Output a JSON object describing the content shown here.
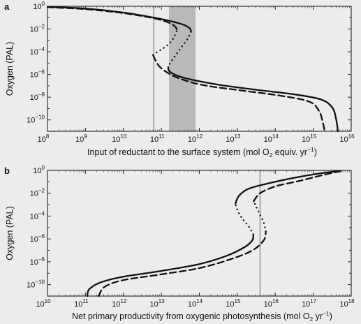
{
  "chart_data": [
    {
      "panel_label": "a",
      "type": "line",
      "xlabel_parts": [
        "Input of reductant to the surface system (mol O",
        "2",
        " equiv. yr",
        "−1",
        ")"
      ],
      "ylabel": "Oxygen (PAL)",
      "x_scale": "log",
      "y_scale": "log",
      "xlim_exp": [
        8,
        16
      ],
      "ylim_exp": [
        -11,
        0
      ],
      "xticks": [
        {
          "base": "10",
          "exp": "8"
        },
        {
          "base": "10",
          "exp": "9"
        },
        {
          "base": "10",
          "exp": "10"
        },
        {
          "base": "10",
          "exp": "11"
        },
        {
          "base": "10",
          "exp": "12"
        },
        {
          "base": "10",
          "exp": "13"
        },
        {
          "base": "10",
          "exp": "14"
        },
        {
          "base": "10",
          "exp": "15"
        },
        {
          "base": "10",
          "exp": "16"
        }
      ],
      "yticks": [
        {
          "base": "10",
          "exp": "0"
        },
        {
          "base": "10",
          "exp": "−2"
        },
        {
          "base": "10",
          "exp": "−4"
        },
        {
          "base": "10",
          "exp": "−6"
        },
        {
          "base": "10",
          "exp": "−8"
        },
        {
          "base": "10",
          "exp": "−10"
        }
      ],
      "vline_log10_x": 10.8,
      "shaded_band_log10_x": [
        11.2,
        11.9
      ],
      "series": [
        {
          "style": "solid",
          "stable_upper": [
            [
              8.0,
              -0.05
            ],
            [
              9.0,
              -0.2
            ],
            [
              10.0,
              -0.55
            ],
            [
              10.8,
              -1.0
            ],
            [
              11.3,
              -1.35
            ],
            [
              11.6,
              -1.65
            ],
            [
              11.75,
              -1.95
            ],
            [
              11.78,
              -2.25
            ]
          ],
          "unstable": [
            [
              11.78,
              -2.25
            ],
            [
              11.7,
              -2.8
            ],
            [
              11.55,
              -3.5
            ],
            [
              11.4,
              -4.2
            ],
            [
              11.25,
              -4.9
            ],
            [
              11.18,
              -5.35
            ]
          ],
          "stable_lower": [
            [
              11.18,
              -5.35
            ],
            [
              11.22,
              -5.75
            ],
            [
              11.5,
              -6.2
            ],
            [
              12.0,
              -6.6
            ],
            [
              12.6,
              -6.95
            ],
            [
              13.5,
              -7.35
            ],
            [
              14.5,
              -7.75
            ],
            [
              15.2,
              -8.2
            ],
            [
              15.5,
              -8.9
            ],
            [
              15.6,
              -9.9
            ],
            [
              15.65,
              -11.0
            ]
          ]
        },
        {
          "style": "dashed",
          "stable_upper": [
            [
              8.0,
              -0.08
            ],
            [
              9.0,
              -0.25
            ],
            [
              10.0,
              -0.6
            ],
            [
              10.8,
              -1.05
            ],
            [
              11.2,
              -1.45
            ],
            [
              11.38,
              -1.85
            ],
            [
              11.4,
              -2.2
            ]
          ],
          "unstable": [
            [
              11.4,
              -2.2
            ],
            [
              11.32,
              -2.8
            ],
            [
              11.2,
              -3.3
            ],
            [
              11.05,
              -3.7
            ],
            [
              10.9,
              -4.0
            ],
            [
              10.78,
              -4.3
            ]
          ],
          "stable_lower": [
            [
              10.78,
              -4.3
            ],
            [
              10.95,
              -5.3
            ],
            [
              11.3,
              -6.1
            ],
            [
              11.8,
              -6.7
            ],
            [
              12.3,
              -7.05
            ],
            [
              13.2,
              -7.45
            ],
            [
              14.2,
              -7.9
            ],
            [
              14.9,
              -8.4
            ],
            [
              15.15,
              -9.2
            ],
            [
              15.25,
              -10.2
            ],
            [
              15.3,
              -11.0
            ]
          ]
        }
      ]
    },
    {
      "panel_label": "b",
      "type": "line",
      "xlabel_parts": [
        "Net primary productivity from oxygenic photosynthesis (mol O",
        "2",
        " yr",
        "−1",
        ")"
      ],
      "ylabel": "Oxygen (PAL)",
      "x_scale": "log",
      "y_scale": "log",
      "xlim_exp": [
        10,
        18
      ],
      "ylim_exp": [
        -11,
        0
      ],
      "xticks": [
        {
          "base": "10",
          "exp": "10"
        },
        {
          "base": "10",
          "exp": "11"
        },
        {
          "base": "10",
          "exp": "12"
        },
        {
          "base": "10",
          "exp": "13"
        },
        {
          "base": "10",
          "exp": "14"
        },
        {
          "base": "10",
          "exp": "15"
        },
        {
          "base": "10",
          "exp": "16"
        },
        {
          "base": "10",
          "exp": "17"
        },
        {
          "base": "10",
          "exp": "18"
        }
      ],
      "yticks": [
        {
          "base": "10",
          "exp": "0"
        },
        {
          "base": "10",
          "exp": "−2"
        },
        {
          "base": "10",
          "exp": "−4"
        },
        {
          "base": "10",
          "exp": "−6"
        },
        {
          "base": "10",
          "exp": "−8"
        },
        {
          "base": "10",
          "exp": "−10"
        }
      ],
      "vline_log10_x": 15.6,
      "series": [
        {
          "style": "solid",
          "stable_lower": [
            [
              11.05,
              -11.0
            ],
            [
              11.1,
              -10.4
            ],
            [
              11.4,
              -9.8
            ],
            [
              12.0,
              -9.3
            ],
            [
              13.0,
              -8.8
            ],
            [
              14.0,
              -8.2
            ],
            [
              14.7,
              -7.5
            ],
            [
              15.2,
              -6.7
            ],
            [
              15.4,
              -6.1
            ],
            [
              15.42,
              -5.6
            ]
          ],
          "unstable": [
            [
              15.42,
              -5.6
            ],
            [
              15.3,
              -4.9
            ],
            [
              15.15,
              -4.3
            ],
            [
              15.05,
              -3.8
            ],
            [
              14.98,
              -3.3
            ],
            [
              14.95,
              -2.9
            ]
          ],
          "stable_upper": [
            [
              14.95,
              -2.9
            ],
            [
              15.05,
              -2.2
            ],
            [
              15.3,
              -1.6
            ],
            [
              15.8,
              -1.15
            ],
            [
              16.5,
              -0.65
            ],
            [
              17.2,
              -0.25
            ],
            [
              17.7,
              -0.05
            ]
          ]
        },
        {
          "style": "dashed",
          "stable_lower": [
            [
              11.35,
              -11.0
            ],
            [
              11.5,
              -10.2
            ],
            [
              12.0,
              -9.6
            ],
            [
              13.0,
              -9.1
            ],
            [
              14.0,
              -8.55
            ],
            [
              14.8,
              -7.8
            ],
            [
              15.4,
              -7.0
            ],
            [
              15.7,
              -6.1
            ],
            [
              15.75,
              -5.35
            ]
          ],
          "unstable": [
            [
              15.75,
              -5.35
            ],
            [
              15.7,
              -4.6
            ],
            [
              15.6,
              -3.9
            ],
            [
              15.5,
              -3.2
            ],
            [
              15.43,
              -2.7
            ]
          ],
          "stable_upper": [
            [
              15.43,
              -2.7
            ],
            [
              15.6,
              -2.0
            ],
            [
              16.0,
              -1.4
            ],
            [
              16.6,
              -0.95
            ],
            [
              17.2,
              -0.45
            ],
            [
              17.6,
              -0.15
            ],
            [
              17.8,
              -0.05
            ]
          ]
        }
      ]
    }
  ]
}
